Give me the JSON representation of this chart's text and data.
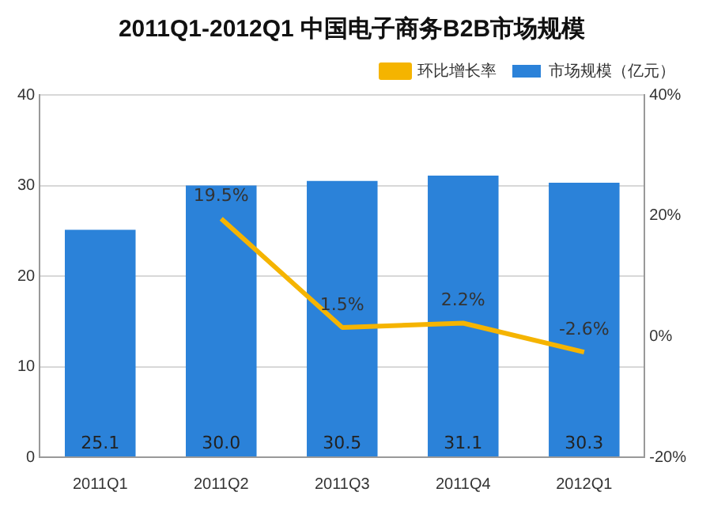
{
  "chart_data": {
    "type": "bar",
    "title": "2011Q1-2012Q1 中国电子商务B2B市场规模",
    "categories": [
      "2011Q1",
      "2011Q2",
      "2011Q3",
      "2011Q4",
      "2012Q1"
    ],
    "series": [
      {
        "name": "市场规模（亿元）",
        "color": "#2b82d9",
        "values": [
          25.1,
          30.0,
          30.5,
          31.1,
          30.3
        ],
        "value_labels": [
          "25.1",
          "30.0",
          "30.5",
          "31.1",
          "30.3"
        ]
      },
      {
        "name": "环比增长率",
        "type": "line",
        "axis": "y2",
        "color": "#f5b400",
        "values": [
          null,
          19.5,
          1.5,
          2.2,
          -2.6
        ],
        "value_labels": [
          null,
          "19.5%",
          "1.5%",
          "2.2%",
          "-2.6%"
        ]
      }
    ],
    "ylim": [
      0,
      40
    ],
    "yticks": [
      0,
      10,
      20,
      30,
      40
    ],
    "y2lim": [
      -20,
      40
    ],
    "y2ticks": [
      {
        "value": -20,
        "label": "-20%"
      },
      {
        "value": 0,
        "label": "0%"
      },
      {
        "value": 20,
        "label": "20%"
      },
      {
        "value": 40,
        "label": "40%"
      }
    ],
    "grid": "y",
    "legend": "top right",
    "marker": "none",
    "line_style": "solid"
  }
}
